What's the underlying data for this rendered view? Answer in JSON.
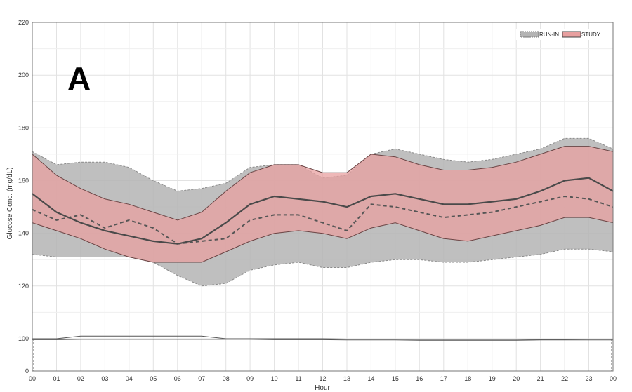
{
  "chart_data": {
    "type": "area",
    "panel_label": "A",
    "xlabel": "Hour",
    "ylabel": "Glucose Conc. (mg/dL)",
    "x_tick_labels": [
      "00",
      "01",
      "02",
      "03",
      "04",
      "05",
      "06",
      "07",
      "08",
      "09",
      "10",
      "11",
      "12",
      "13",
      "14",
      "15",
      "16",
      "17",
      "18",
      "19",
      "20",
      "21",
      "22",
      "23",
      "00"
    ],
    "xlim": [
      0,
      24
    ],
    "ylim": [
      0,
      220
    ],
    "y_axis_break": {
      "from": 0,
      "to": 100
    },
    "y_ticks": [
      0,
      100,
      120,
      140,
      160,
      180,
      200,
      220
    ],
    "grid": true,
    "legend": {
      "position": "top-right",
      "entries": [
        "RUN-IN",
        "STUDY"
      ]
    },
    "x": [
      0,
      1,
      2,
      3,
      4,
      5,
      6,
      7,
      8,
      9,
      10,
      11,
      12,
      13,
      14,
      15,
      16,
      17,
      18,
      19,
      20,
      21,
      22,
      23,
      24
    ],
    "series": [
      {
        "name": "RUN-IN",
        "color": "#b4b4b4",
        "style": "dashed",
        "median": [
          149,
          145,
          147,
          142,
          145,
          142,
          136,
          137,
          138,
          145,
          147,
          147,
          144,
          141,
          151,
          150,
          148,
          146,
          147,
          148,
          150,
          152,
          154,
          153,
          150
        ],
        "lower": [
          132,
          131,
          131,
          131,
          131,
          129,
          124,
          120,
          121,
          126,
          128,
          129,
          127,
          127,
          129,
          130,
          130,
          129,
          129,
          130,
          131,
          132,
          134,
          134,
          133
        ],
        "upper": [
          171,
          166,
          167,
          167,
          165,
          160,
          156,
          157,
          159,
          165,
          166,
          166,
          161,
          162,
          170,
          172,
          170,
          168,
          167,
          168,
          170,
          172,
          176,
          176,
          172
        ]
      },
      {
        "name": "STUDY",
        "color": "#e8a0a0",
        "style": "solid",
        "median": [
          155,
          148,
          144,
          141,
          139,
          137,
          136,
          138,
          144,
          151,
          154,
          153,
          152,
          150,
          154,
          155,
          153,
          151,
          151,
          152,
          153,
          156,
          160,
          161,
          156
        ],
        "lower": [
          144,
          141,
          138,
          134,
          131,
          129,
          129,
          129,
          133,
          137,
          140,
          141,
          140,
          138,
          142,
          144,
          141,
          138,
          137,
          139,
          141,
          143,
          146,
          146,
          144
        ],
        "upper": [
          170,
          162,
          157,
          153,
          151,
          148,
          145,
          148,
          156,
          163,
          166,
          166,
          163,
          163,
          170,
          169,
          166,
          164,
          164,
          165,
          167,
          170,
          173,
          173,
          171
        ]
      }
    ],
    "lower_panel_lines": [
      {
        "values": [
          100,
          100,
          101,
          101,
          101,
          101,
          101,
          101,
          100,
          100,
          100,
          100,
          100,
          99,
          99,
          99,
          98,
          98,
          98,
          98,
          98,
          98,
          98,
          99,
          99
        ]
      },
      {
        "values": [
          97,
          97,
          98,
          98,
          98,
          98,
          98,
          98,
          98,
          98,
          97,
          97,
          97,
          96,
          96,
          96,
          95,
          95,
          95,
          95,
          95,
          96,
          96,
          96,
          96
        ]
      }
    ]
  }
}
